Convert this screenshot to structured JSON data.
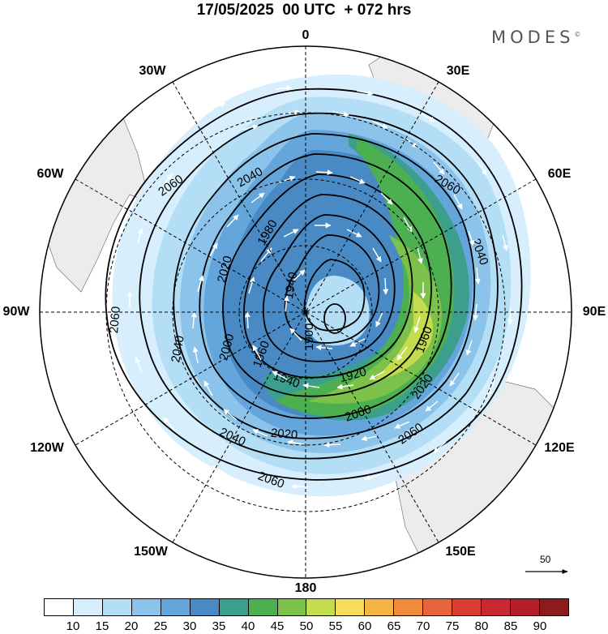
{
  "title": "17/05/2025  00 UTC  + 072 hrs",
  "brand": {
    "name": "MODES",
    "mark": "©"
  },
  "longitude_labels": [
    {
      "id": "lon-0",
      "text": "0"
    },
    {
      "id": "lon-30e",
      "text": "30E"
    },
    {
      "id": "lon-60e",
      "text": "60E"
    },
    {
      "id": "lon-90e",
      "text": "90E"
    },
    {
      "id": "lon-120e",
      "text": "120E"
    },
    {
      "id": "lon-150e",
      "text": "150E"
    },
    {
      "id": "lon-180",
      "text": "180"
    },
    {
      "id": "lon-150w",
      "text": "150W"
    },
    {
      "id": "lon-120w",
      "text": "120W"
    },
    {
      "id": "lon-90w",
      "text": "90W"
    },
    {
      "id": "lon-60w",
      "text": "60W"
    },
    {
      "id": "lon-30w",
      "text": "30W"
    }
  ],
  "contour_labels": [
    "2060",
    "2040",
    "2020",
    "2000",
    "1980",
    "1960",
    "1940",
    "1920",
    "1900"
  ],
  "wind_reference_vector": "50",
  "colorbar": {
    "labels": [
      "10",
      "15",
      "20",
      "25",
      "30",
      "35",
      "40",
      "45",
      "50",
      "55",
      "60",
      "65",
      "70",
      "75",
      "80",
      "85",
      "90"
    ],
    "colors": [
      "#ffffff",
      "#d7effc",
      "#b4def6",
      "#8cc3ea",
      "#64a6dc",
      "#4a8ac4",
      "#3c9e8c",
      "#4caf50",
      "#7cc24a",
      "#c4dc50",
      "#f5dc5a",
      "#f5b446",
      "#f08c3c",
      "#e8643c",
      "#dc3c32",
      "#c82832",
      "#b4202a",
      "#8c1c1c"
    ]
  }
}
